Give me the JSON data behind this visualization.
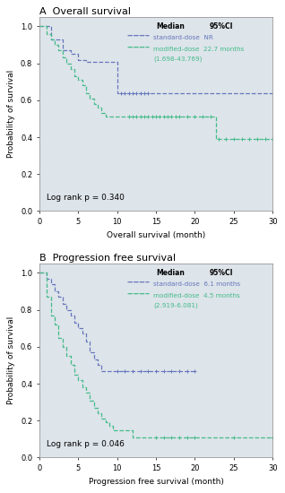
{
  "panel_A_title": "A  Overall survival",
  "panel_B_title": "B  Progression free survival",
  "xlabel_A": "Overall survival (month)",
  "xlabel_B": "Progression free survival (month)",
  "ylabel": "Probability of survival",
  "xlim": [
    0,
    30
  ],
  "ylim": [
    0,
    1.05
  ],
  "xticks": [
    0,
    5,
    10,
    15,
    20,
    25,
    30
  ],
  "yticks": [
    0.0,
    0.2,
    0.4,
    0.6,
    0.8,
    1.0
  ],
  "bg_color": "#dde4ea",
  "logrank_A": "Log rank p = 0.340",
  "logrank_B": "Log rank p = 0.046",
  "standard_color": "#6677bb",
  "modified_color": "#44bb88",
  "os_standard_x": [
    0,
    1,
    1.5,
    2,
    3,
    4,
    5,
    6,
    7,
    8,
    9,
    9.5,
    10,
    14,
    30
  ],
  "os_standard_y": [
    1.0,
    1.0,
    0.93,
    0.93,
    0.87,
    0.85,
    0.82,
    0.81,
    0.81,
    0.81,
    0.81,
    0.81,
    0.64,
    0.64,
    0.64
  ],
  "os_standard_censor_x": [
    10.5,
    11,
    11.5,
    12,
    12.5,
    13,
    13.5,
    14
  ],
  "os_standard_censor_y": [
    0.64,
    0.64,
    0.64,
    0.64,
    0.64,
    0.64,
    0.64,
    0.64
  ],
  "os_modified_x": [
    0,
    0.5,
    1,
    1.5,
    2,
    2.5,
    3,
    3.5,
    4,
    4.5,
    5,
    5.5,
    6,
    6.5,
    7,
    7.5,
    8,
    8.5,
    9,
    9.5,
    10,
    10.5,
    11,
    22,
    22.7,
    30
  ],
  "os_modified_y": [
    1.0,
    1.0,
    0.96,
    0.93,
    0.9,
    0.87,
    0.83,
    0.8,
    0.77,
    0.73,
    0.71,
    0.68,
    0.64,
    0.61,
    0.58,
    0.56,
    0.53,
    0.51,
    0.51,
    0.51,
    0.51,
    0.51,
    0.51,
    0.51,
    0.39,
    0.39
  ],
  "os_modified_censor_x": [
    11.5,
    12,
    12.5,
    13,
    13.5,
    14,
    14.5,
    15,
    15.5,
    16,
    16.5,
    17,
    17.5,
    18,
    19,
    20,
    21,
    22
  ],
  "os_modified_censor_y": [
    0.51,
    0.51,
    0.51,
    0.51,
    0.51,
    0.51,
    0.51,
    0.51,
    0.51,
    0.51,
    0.51,
    0.51,
    0.51,
    0.51,
    0.51,
    0.51,
    0.51,
    0.51
  ],
  "os_modified_censor2_x": [
    23,
    24,
    25,
    26,
    27,
    28,
    29,
    30
  ],
  "os_modified_censor2_y": [
    0.39,
    0.39,
    0.39,
    0.39,
    0.39,
    0.39,
    0.39,
    0.39
  ],
  "pfs_standard_x": [
    0,
    0.5,
    1,
    1.5,
    2,
    2.5,
    3,
    3.5,
    4,
    4.5,
    5,
    5.5,
    6,
    6.5,
    7,
    7.5,
    8,
    9,
    10,
    20
  ],
  "pfs_standard_y": [
    1.0,
    1.0,
    0.97,
    0.94,
    0.9,
    0.87,
    0.83,
    0.8,
    0.77,
    0.73,
    0.7,
    0.67,
    0.63,
    0.57,
    0.53,
    0.5,
    0.47,
    0.47,
    0.47,
    0.47
  ],
  "pfs_standard_censor_x": [
    10,
    11,
    12,
    13,
    14,
    15,
    16,
    17,
    18,
    19,
    20
  ],
  "pfs_standard_censor_y": [
    0.47,
    0.47,
    0.47,
    0.47,
    0.47,
    0.47,
    0.47,
    0.47,
    0.47,
    0.47,
    0.47
  ],
  "pfs_modified_x": [
    0,
    0.5,
    1,
    1.5,
    2,
    2.5,
    3,
    3.5,
    4,
    4.5,
    5,
    5.5,
    6,
    6.5,
    7,
    7.5,
    8,
    8.5,
    9,
    9.5,
    10,
    12,
    14,
    15,
    30
  ],
  "pfs_modified_y": [
    1.0,
    1.0,
    0.87,
    0.77,
    0.72,
    0.65,
    0.6,
    0.55,
    0.5,
    0.45,
    0.42,
    0.38,
    0.35,
    0.31,
    0.27,
    0.24,
    0.21,
    0.19,
    0.17,
    0.15,
    0.15,
    0.11,
    0.11,
    0.11,
    0.11
  ],
  "pfs_modified_censor_x": [
    15,
    16,
    17,
    18,
    19,
    20,
    25,
    30
  ],
  "pfs_modified_censor_y": [
    0.11,
    0.11,
    0.11,
    0.11,
    0.11,
    0.11,
    0.11,
    0.11
  ]
}
